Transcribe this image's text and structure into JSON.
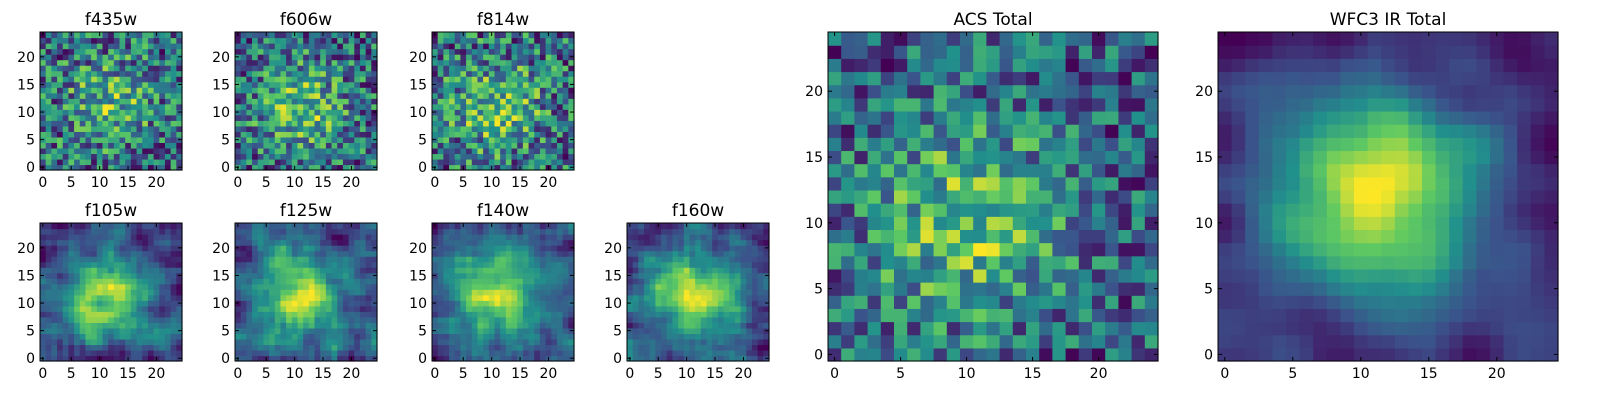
{
  "figure": {
    "background": "#ffffff",
    "colormap": "viridis",
    "colormap_stops": [
      "#440154",
      "#3b528b",
      "#21918c",
      "#5ec962",
      "#fde725"
    ]
  },
  "chart_data": [
    {
      "type": "heatmap",
      "title": "f435w",
      "grid_size": 25,
      "xlim": [
        0,
        24
      ],
      "ylim": [
        0,
        24
      ],
      "xticks": [
        "0",
        "5",
        "10",
        "15",
        "20"
      ],
      "yticks": [
        "0",
        "5",
        "10",
        "15",
        "20"
      ],
      "peak_center": [
        12,
        12
      ],
      "noise_level": 0.9,
      "smoothness": 0
    },
    {
      "type": "heatmap",
      "title": "f606w",
      "grid_size": 25,
      "xlim": [
        0,
        24
      ],
      "ylim": [
        0,
        24
      ],
      "xticks": [
        "0",
        "5",
        "10",
        "15",
        "20"
      ],
      "yticks": [
        "0",
        "5",
        "10",
        "15",
        "20"
      ],
      "peak_center": [
        11,
        11
      ],
      "noise_level": 0.7,
      "smoothness": 0
    },
    {
      "type": "heatmap",
      "title": "f814w",
      "grid_size": 25,
      "xlim": [
        0,
        24
      ],
      "ylim": [
        0,
        24
      ],
      "xticks": [
        "0",
        "5",
        "10",
        "15",
        "20"
      ],
      "yticks": [
        "0",
        "5",
        "10",
        "15",
        "20"
      ],
      "peak_center": [
        11,
        11
      ],
      "noise_level": 0.7,
      "smoothness": 0
    },
    {
      "type": "heatmap",
      "title": "f105w",
      "grid_size": 25,
      "xlim": [
        0,
        24
      ],
      "ylim": [
        0,
        24
      ],
      "xticks": [
        "0",
        "5",
        "10",
        "15",
        "20"
      ],
      "yticks": [
        "0",
        "5",
        "10",
        "15",
        "20"
      ],
      "peak_center": [
        11,
        11
      ],
      "noise_level": 0.55,
      "smoothness": 1
    },
    {
      "type": "heatmap",
      "title": "f125w",
      "grid_size": 25,
      "xlim": [
        0,
        24
      ],
      "ylim": [
        0,
        24
      ],
      "xticks": [
        "0",
        "5",
        "10",
        "15",
        "20"
      ],
      "yticks": [
        "0",
        "5",
        "10",
        "15",
        "20"
      ],
      "peak_center": [
        11,
        11
      ],
      "noise_level": 0.55,
      "smoothness": 1
    },
    {
      "type": "heatmap",
      "title": "f140w",
      "grid_size": 25,
      "xlim": [
        0,
        24
      ],
      "ylim": [
        0,
        24
      ],
      "xticks": [
        "0",
        "5",
        "10",
        "15",
        "20"
      ],
      "yticks": [
        "0",
        "5",
        "10",
        "15",
        "20"
      ],
      "peak_center": [
        11,
        12
      ],
      "noise_level": 0.5,
      "smoothness": 1
    },
    {
      "type": "heatmap",
      "title": "f160w",
      "grid_size": 25,
      "xlim": [
        0,
        24
      ],
      "ylim": [
        0,
        24
      ],
      "xticks": [
        "0",
        "5",
        "10",
        "15",
        "20"
      ],
      "yticks": [
        "0",
        "5",
        "10",
        "15",
        "20"
      ],
      "peak_center": [
        11,
        11
      ],
      "noise_level": 0.45,
      "smoothness": 1
    },
    {
      "type": "heatmap",
      "title": "ACS Total",
      "grid_size": 25,
      "xlim": [
        0,
        24
      ],
      "ylim": [
        0,
        24
      ],
      "xticks": [
        "0",
        "5",
        "10",
        "15",
        "20"
      ],
      "yticks": [
        "0",
        "5",
        "10",
        "15",
        "20"
      ],
      "peak_center": [
        10,
        10
      ],
      "noise_level": 0.5,
      "smoothness": 0
    },
    {
      "type": "heatmap",
      "title": "WFC3 IR Total",
      "grid_size": 25,
      "xlim": [
        0,
        24
      ],
      "ylim": [
        0,
        24
      ],
      "xticks": [
        "0",
        "5",
        "10",
        "15",
        "20"
      ],
      "yticks": [
        "0",
        "5",
        "10",
        "15",
        "20"
      ],
      "peak_center": [
        11,
        12
      ],
      "noise_level": 0.3,
      "smoothness": 2
    }
  ]
}
